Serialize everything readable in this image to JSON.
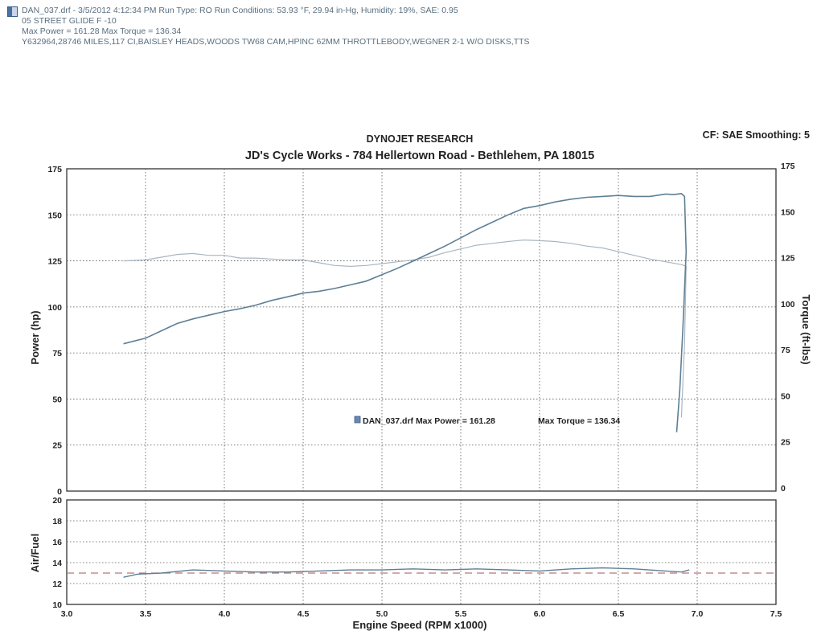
{
  "header": {
    "line1": "DAN_037.drf - 3/5/2012 4:12:34 PM  Run Type: RO  Run Conditions: 53.93 °F, 29.94 in-Hg,  Humidity:  19%, SAE: 0.95",
    "line2": "05 STREET GLIDE   F -10",
    "line3": "Max Power = 161.28  Max Torque = 136.34",
    "line4": "Y632964,28746 MILES,117 CI,BAISLEY HEADS,WOODS TW68 CAM,HPINC 62MM THROTTLEBODY,WEGNER 2-1 W/O DISKS,TTS"
  },
  "chart_data": [
    {
      "type": "line",
      "title": "DYNOJET RESEARCH",
      "subtitle": "JD's Cycle Works - 784 Hellertown Road - Bethlehem, PA 18015",
      "corner_note": "CF: SAE  Smoothing: 5",
      "ylabel": "Power (hp)",
      "y2label": "Torque (ft-lbs)",
      "xlim": [
        3.0,
        7.5
      ],
      "ylim": [
        0,
        175
      ],
      "y2lim": [
        0,
        175
      ],
      "yticks": [
        0,
        25,
        50,
        75,
        100,
        125,
        150,
        175
      ],
      "grid": true,
      "legend_text": "DAN_037.drf Max Power = 161.28",
      "legend_text2": "Max Torque = 136.34",
      "series": [
        {
          "role": "power",
          "color": "#5e7f96",
          "x": [
            3.36,
            3.5,
            3.6,
            3.7,
            3.8,
            3.9,
            4.0,
            4.1,
            4.2,
            4.3,
            4.4,
            4.5,
            4.6,
            4.7,
            4.8,
            4.9,
            5.0,
            5.1,
            5.2,
            5.3,
            5.4,
            5.5,
            5.6,
            5.7,
            5.8,
            5.9,
            6.0,
            6.1,
            6.2,
            6.3,
            6.4,
            6.5,
            6.6,
            6.7,
            6.8,
            6.85,
            6.9,
            6.92,
            6.93,
            6.91,
            6.89,
            6.87
          ],
          "y": [
            80,
            83,
            87,
            91,
            93.5,
            95.5,
            97.5,
            99,
            101,
            103.5,
            105.5,
            107.5,
            108.5,
            110,
            112,
            114,
            117.5,
            121,
            125,
            129,
            133,
            137.5,
            142,
            146,
            150,
            153.5,
            155,
            157,
            158.5,
            159.5,
            160,
            160.5,
            160,
            160,
            161.28,
            161,
            161.5,
            160,
            130,
            90,
            55,
            32
          ]
        },
        {
          "role": "torque",
          "color": "#a9b6c2",
          "x": [
            3.36,
            3.5,
            3.6,
            3.7,
            3.8,
            3.9,
            4.0,
            4.1,
            4.2,
            4.3,
            4.4,
            4.5,
            4.6,
            4.7,
            4.8,
            4.9,
            5.0,
            5.1,
            5.2,
            5.3,
            5.4,
            5.5,
            5.6,
            5.7,
            5.8,
            5.9,
            6.0,
            6.1,
            6.2,
            6.3,
            6.4,
            6.5,
            6.6,
            6.7,
            6.8,
            6.9,
            6.93,
            6.92,
            6.9
          ],
          "y": [
            125,
            125.5,
            127,
            128.5,
            129,
            128,
            128,
            126.5,
            126.5,
            126,
            125.5,
            125.5,
            124,
            122.5,
            122,
            122.5,
            123.5,
            124.5,
            125.5,
            127,
            129.5,
            131.5,
            133.5,
            134.5,
            135.5,
            136.34,
            136,
            135.5,
            134.5,
            133,
            132,
            130,
            128,
            126,
            124.5,
            123,
            122,
            80,
            40
          ]
        }
      ]
    },
    {
      "type": "line",
      "ylabel": "Air/Fuel",
      "xlabel": "Engine Speed (RPM x1000)",
      "xlim": [
        3.0,
        7.5
      ],
      "ylim": [
        10,
        20
      ],
      "xticks": [
        3.0,
        3.5,
        4.0,
        4.5,
        5.0,
        5.5,
        6.0,
        6.5,
        7.0,
        7.5
      ],
      "xtick_labels": [
        "3.0",
        "3.5",
        "4.0",
        "4.5",
        "5.0",
        "5.5",
        "6.0",
        "6.5",
        "7.0",
        "7.5"
      ],
      "yticks": [
        10,
        12,
        14,
        16,
        18,
        20
      ],
      "grid": true,
      "reference_line": {
        "y": 13.0,
        "color": "#b77878"
      },
      "series": [
        {
          "role": "air_fuel",
          "color": "#5e7f96",
          "x": [
            3.36,
            3.45,
            3.6,
            3.8,
            4.0,
            4.2,
            4.4,
            4.6,
            4.8,
            5.0,
            5.2,
            5.4,
            5.6,
            5.8,
            6.0,
            6.2,
            6.4,
            6.6,
            6.8,
            6.9,
            6.95
          ],
          "y": [
            12.6,
            12.9,
            13.0,
            13.3,
            13.2,
            13.1,
            13.1,
            13.2,
            13.3,
            13.3,
            13.4,
            13.3,
            13.4,
            13.3,
            13.2,
            13.4,
            13.5,
            13.4,
            13.2,
            13.1,
            13.3
          ]
        }
      ]
    }
  ]
}
